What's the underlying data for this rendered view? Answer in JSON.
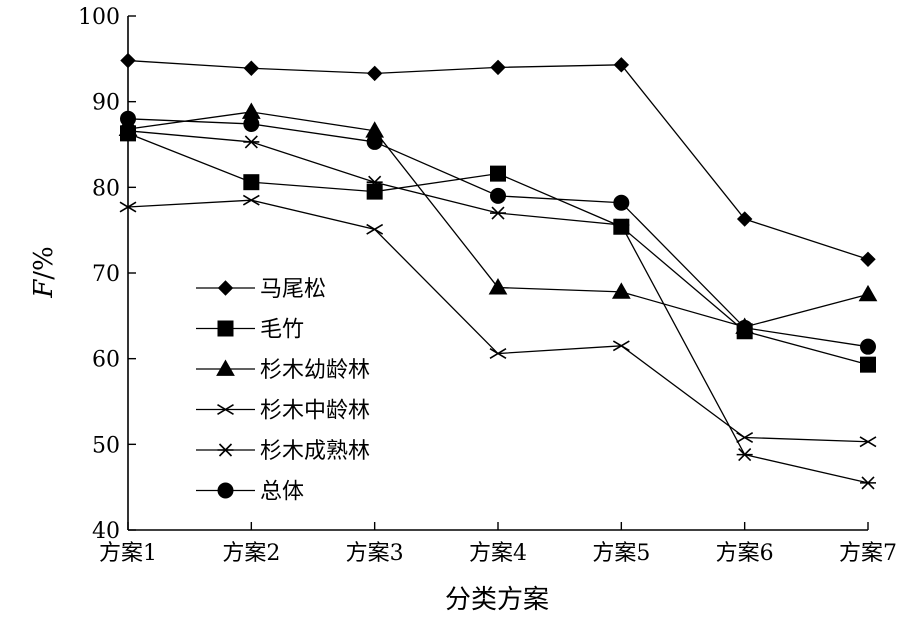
{
  "chart_data": {
    "type": "line",
    "title": "",
    "xlabel": "分类方案",
    "ylabel_main": "F",
    "ylabel_unit": "/%",
    "categories": [
      "方案1",
      "方案2",
      "方案3",
      "方案4",
      "方案5",
      "方案6",
      "方案7"
    ],
    "ylim": [
      40,
      100
    ],
    "yticks": [
      40,
      50,
      60,
      70,
      80,
      90,
      100
    ],
    "grid": false,
    "legend_position": "lower-left",
    "series": [
      {
        "name": "马尾松",
        "marker": "diamond",
        "values": [
          94.8,
          93.9,
          93.3,
          94.0,
          94.3,
          76.3,
          71.6
        ]
      },
      {
        "name": "毛竹",
        "marker": "square",
        "values": [
          86.3,
          80.6,
          79.5,
          81.6,
          75.4,
          63.2,
          59.3
        ]
      },
      {
        "name": "杉木幼龄林",
        "marker": "triangle",
        "values": [
          86.8,
          88.8,
          86.6,
          68.3,
          67.8,
          63.7,
          67.5
        ]
      },
      {
        "name": "杉木中龄林",
        "marker": "x",
        "values": [
          77.7,
          78.5,
          75.1,
          60.6,
          61.5,
          50.8,
          50.3
        ]
      },
      {
        "name": "杉木成熟林",
        "marker": "asterisk",
        "values": [
          86.6,
          85.3,
          80.6,
          77.0,
          75.6,
          48.8,
          45.5
        ]
      },
      {
        "name": "总体",
        "marker": "circle",
        "values": [
          88.0,
          87.4,
          85.3,
          79.0,
          78.2,
          63.6,
          61.4
        ]
      }
    ]
  }
}
